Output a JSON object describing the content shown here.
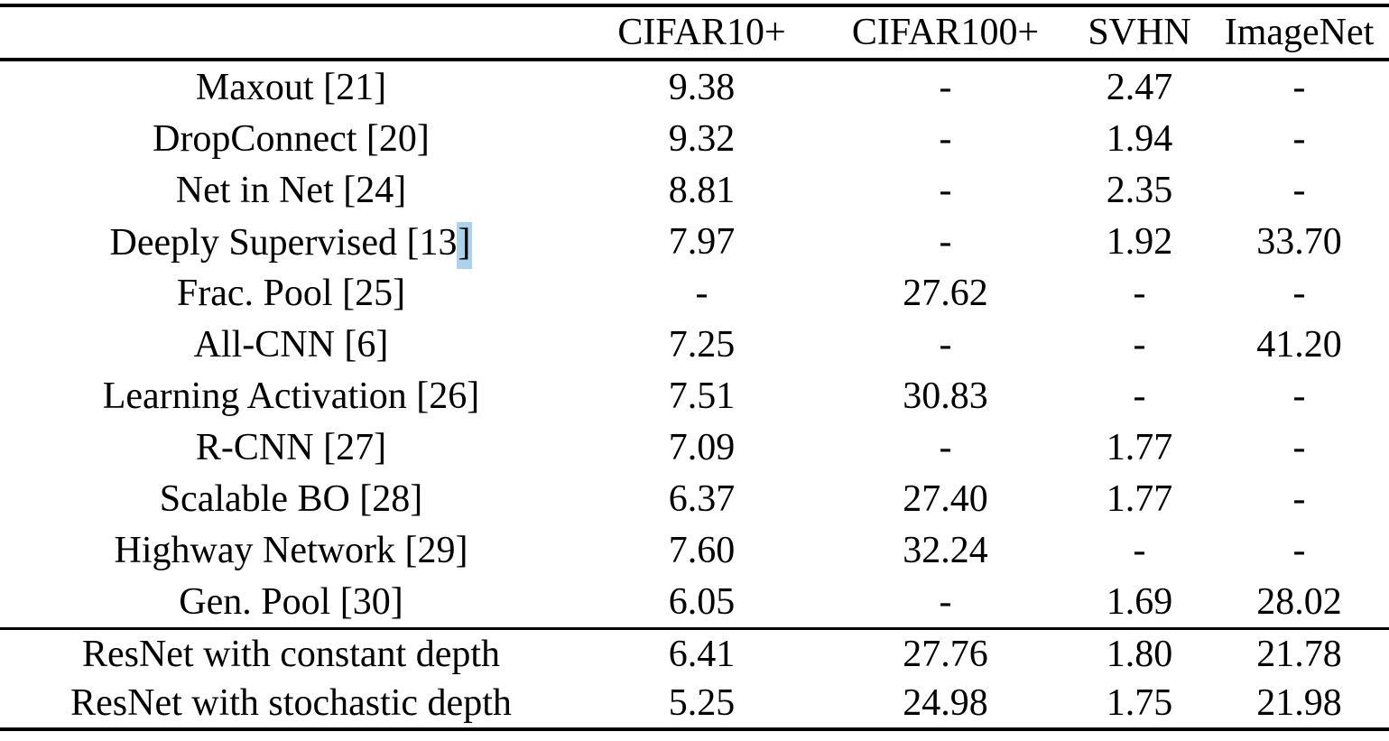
{
  "page": {
    "background_color": "#ffffff",
    "rule_color": "#000000",
    "text_color": "#000000",
    "selection_color": "#aed2ec"
  },
  "table": {
    "column_headers": {
      "method": "",
      "cifar10": "CIFAR10+",
      "cifar100": "CIFAR100+",
      "svhn": "SVHN",
      "imagenet": "ImageNet"
    },
    "prior_rows": [
      {
        "method": "Maxout [21]",
        "values": [
          "9.38",
          "-",
          "2.47",
          "-"
        ]
      },
      {
        "method": "DropConnect [20]",
        "values": [
          "9.32",
          "-",
          "1.94",
          "-"
        ]
      },
      {
        "method": "Net in Net [24]",
        "values": [
          "8.81",
          "-",
          "2.35",
          "-"
        ]
      },
      {
        "method": "Deeply Supervised [13",
        "method_selected_suffix": "]",
        "values": [
          "7.97",
          "-",
          "1.92",
          "33.70"
        ]
      },
      {
        "method": "Frac. Pool [25]",
        "values": [
          "-",
          "27.62",
          "-",
          "-"
        ]
      },
      {
        "method": "All-CNN [6]",
        "values": [
          "7.25",
          "-",
          "-",
          "41.20"
        ]
      },
      {
        "method": "Learning Activation [26]",
        "values": [
          "7.51",
          "30.83",
          "-",
          "-"
        ]
      },
      {
        "method": "R-CNN [27]",
        "values": [
          "7.09",
          "-",
          "1.77",
          "-"
        ]
      },
      {
        "method": "Scalable BO [28]",
        "values": [
          "6.37",
          "27.40",
          "1.77",
          "-"
        ]
      },
      {
        "method": "Highway Network [29]",
        "values": [
          "7.60",
          "32.24",
          "-",
          "-"
        ]
      },
      {
        "method": "Gen. Pool [30]",
        "values": [
          "6.05",
          "-",
          "1.69",
          "28.02"
        ]
      }
    ],
    "resnet_rows": [
      {
        "method": "ResNet with constant depth",
        "values": [
          "6.41",
          "27.76",
          "1.80",
          "21.78"
        ]
      },
      {
        "method": "ResNet with stochastic depth",
        "values": [
          "5.25",
          "24.98",
          "1.75",
          "21.98"
        ]
      }
    ]
  }
}
